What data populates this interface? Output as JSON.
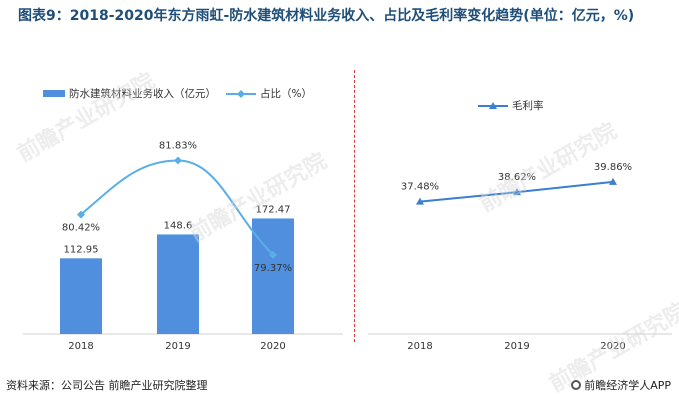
{
  "title": "图表9：2018-2020年东方雨虹-防水建筑材料业务收入、占比及毛利率变化趋势(单位：亿元，%)",
  "colors": {
    "bar": "#4f8fde",
    "share_line": "#5aaee8",
    "margin_line": "#3b7fd0",
    "title": "#1f4e79",
    "divider": "#e23a3a"
  },
  "footer": {
    "source": "资料来源：公司公告 前瞻产业研究院整理",
    "brand": "前瞻经济学人APP",
    "brand_icon": "logo-icon"
  },
  "watermark": "前瞻产业研究院",
  "chart_data": [
    {
      "type": "bar",
      "categories": [
        "2018",
        "2019",
        "2020"
      ],
      "series": [
        {
          "name": "防水建筑材料业务收入（亿元）",
          "type": "bar",
          "values": [
            112.95,
            148.6,
            172.47
          ],
          "labels": [
            "112.95",
            "148.6",
            "172.47"
          ]
        },
        {
          "name": "占比（%）",
          "type": "line",
          "smooth": true,
          "values": [
            80.42,
            81.83,
            79.37
          ],
          "labels": [
            "80.42%",
            "81.83%",
            "79.37%"
          ]
        }
      ],
      "legend": "top-left",
      "grid": false
    },
    {
      "type": "line",
      "categories": [
        "2018",
        "2019",
        "2020"
      ],
      "series": [
        {
          "name": "毛利率",
          "values": [
            37.48,
            38.62,
            39.86
          ],
          "labels": [
            "37.48%",
            "38.62%",
            "39.86%"
          ]
        }
      ],
      "legend": "top",
      "grid": false
    }
  ]
}
